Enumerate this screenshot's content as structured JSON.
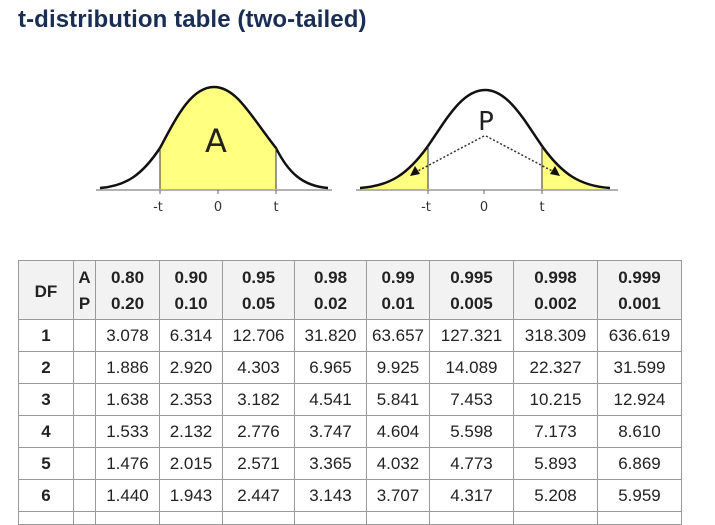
{
  "title": "t-distribution table (two-tailed)",
  "figures": {
    "left": {
      "area_label": "A",
      "ticks": [
        "-t",
        "0",
        "t"
      ]
    },
    "right": {
      "area_label": "P",
      "ticks": [
        "-t",
        "0",
        "t"
      ]
    },
    "shade_color": "#ffff80"
  },
  "table": {
    "df_header": "DF",
    "a_label": "A",
    "p_label": "P",
    "a_values": [
      "0.80",
      "0.90",
      "0.95",
      "0.98",
      "0.99",
      "0.995",
      "0.998",
      "0.999"
    ],
    "p_values": [
      "0.20",
      "0.10",
      "0.05",
      "0.02",
      "0.01",
      "0.005",
      "0.002",
      "0.001"
    ],
    "rows": [
      {
        "df": "1",
        "values": [
          "3.078",
          "6.314",
          "12.706",
          "31.820",
          "63.657",
          "127.321",
          "318.309",
          "636.619"
        ]
      },
      {
        "df": "2",
        "values": [
          "1.886",
          "2.920",
          "4.303",
          "6.965",
          "9.925",
          "14.089",
          "22.327",
          "31.599"
        ]
      },
      {
        "df": "3",
        "values": [
          "1.638",
          "2.353",
          "3.182",
          "4.541",
          "5.841",
          "7.453",
          "10.215",
          "12.924"
        ]
      },
      {
        "df": "4",
        "values": [
          "1.533",
          "2.132",
          "2.776",
          "3.747",
          "4.604",
          "5.598",
          "7.173",
          "8.610"
        ]
      },
      {
        "df": "5",
        "values": [
          "1.476",
          "2.015",
          "2.571",
          "3.365",
          "4.032",
          "4.773",
          "5.893",
          "6.869"
        ]
      },
      {
        "df": "6",
        "values": [
          "1.440",
          "1.943",
          "2.447",
          "3.143",
          "3.707",
          "4.317",
          "5.208",
          "5.959"
        ]
      }
    ]
  }
}
